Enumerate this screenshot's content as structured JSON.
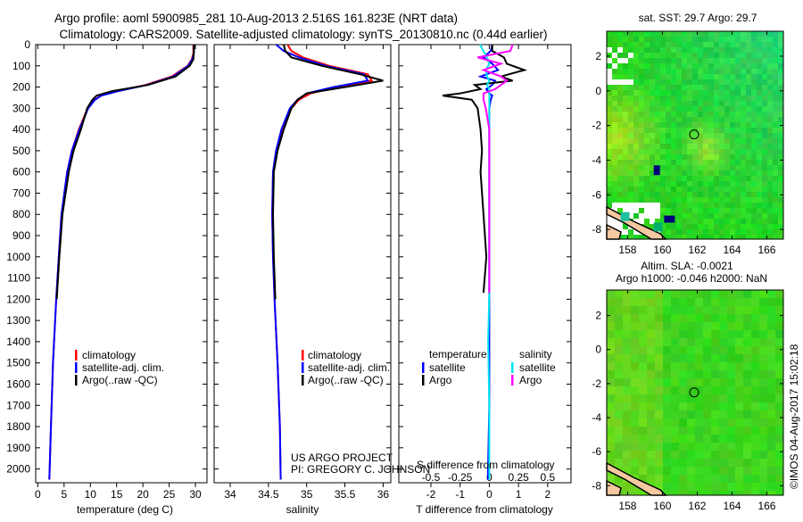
{
  "title_line1": "Argo profile: aoml 5900985_281 10-Aug-2013 2.516S 161.823E (NRT data)",
  "title_line2": "Climatology: CARS2009. Satellite-adjusted climatology: synTS_20130810.nc (0.44d earlier)",
  "credit": "©IMOS 04-Aug-2017 15:02:18",
  "project_line1": "US ARGO PROJECT",
  "project_line2": "PI: GREGORY C. JOHNSON",
  "colors": {
    "climatology": "#ff0000",
    "satellite": "#0000ff",
    "argo": "#000000",
    "sal_satellite": "#00e5ee",
    "sal_argo": "#ff00ff"
  },
  "chart_data": [
    {
      "type": "line",
      "id": "temperature",
      "xlabel": "temperature (deg C)",
      "ylabel": "depth",
      "xlim": [
        -0.4,
        32.2
      ],
      "ylim": [
        2050,
        0
      ],
      "xticks": [
        "0",
        "5",
        "10",
        "15",
        "20",
        "25",
        "30"
      ],
      "yticks": [
        "0",
        "100",
        "200",
        "300",
        "400",
        "500",
        "600",
        "700",
        "800",
        "900",
        "1000",
        "1100",
        "1200",
        "1300",
        "1400",
        "1500",
        "1600",
        "1700",
        "1800",
        "1900",
        "2000"
      ],
      "legend": [
        "climatology",
        "satellite-adj. clim.",
        "Argo(..raw -QC)"
      ],
      "depth": [
        0,
        40,
        70,
        100,
        150,
        190,
        220,
        240,
        260,
        300,
        400,
        500,
        600,
        800,
        1000,
        1200,
        1500,
        1800,
        2050
      ],
      "series": [
        {
          "name": "climatology",
          "values": [
            29.6,
            29.6,
            29.3,
            28.5,
            25.5,
            20.5,
            15,
            12,
            10.8,
            9.5,
            7.8,
            6.5,
            5.6,
            4.5,
            4.0,
            3.5,
            2.9,
            2.5,
            2.2
          ]
        },
        {
          "name": "satellite-adj. clim.",
          "values": [
            29.7,
            29.7,
            29.4,
            28.6,
            25.8,
            20.8,
            15.2,
            12.1,
            10.9,
            9.6,
            7.9,
            6.5,
            5.6,
            4.5,
            4.0,
            3.5,
            2.9,
            2.5,
            2.2
          ]
        },
        {
          "name": "Argo(..raw -QC)",
          "values": [
            29.7,
            29.7,
            29.6,
            28.9,
            26.2,
            21,
            14,
            11.2,
            10.4,
            9.4,
            8.2,
            6.8,
            5.9,
            4.7,
            4.1,
            3.6,
            null,
            null,
            null
          ]
        }
      ]
    },
    {
      "type": "line",
      "id": "salinity",
      "xlabel": "salinity",
      "xlim": [
        33.79,
        36.1
      ],
      "ylim": [
        2050,
        0
      ],
      "xticks": [
        "34",
        "34.5",
        "35",
        "35.5",
        "36"
      ],
      "legend": [
        "climatology",
        "satellite-adj. clim.",
        "Argo(..raw -QC)"
      ],
      "depth": [
        0,
        30,
        60,
        100,
        140,
        170,
        200,
        230,
        260,
        300,
        400,
        500,
        600,
        800,
        1000,
        1200,
        1500,
        1800,
        2050
      ],
      "series": [
        {
          "name": "climatology",
          "values": [
            34.75,
            34.8,
            34.95,
            35.3,
            35.8,
            35.85,
            35.4,
            35.05,
            34.9,
            34.8,
            34.68,
            34.6,
            34.56,
            34.55,
            34.56,
            34.58,
            34.62,
            34.65,
            34.66
          ]
        },
        {
          "name": "satellite-adj. clim.",
          "values": [
            34.6,
            34.7,
            34.9,
            35.25,
            35.75,
            35.8,
            35.35,
            35.0,
            34.88,
            34.78,
            34.67,
            34.6,
            34.56,
            34.55,
            34.56,
            34.58,
            34.62,
            34.65,
            34.66
          ]
        },
        {
          "name": "Argo(..raw -QC)",
          "values": [
            34.7,
            34.72,
            34.8,
            35.2,
            35.7,
            36.0,
            35.5,
            35.0,
            34.88,
            34.8,
            34.7,
            34.62,
            34.57,
            34.56,
            34.57,
            34.59,
            null,
            null,
            null
          ]
        }
      ]
    },
    {
      "type": "line",
      "id": "difference",
      "xlabel": "T difference from climatology",
      "xlabel2": "S difference from climatology",
      "xlim": [
        -3.1,
        2.8
      ],
      "ylim": [
        2050,
        0
      ],
      "xticks": [
        "-2",
        "-1",
        "0",
        "1",
        "2"
      ],
      "xticks2": [
        "-0.5",
        "-0.25",
        "0",
        "0.25",
        "0.5"
      ],
      "legend_temp_title": "temperature",
      "legend_sal_title": "salinity",
      "legend": [
        "satellite",
        "Argo",
        "satellite",
        "Argo"
      ],
      "depth": [
        0,
        30,
        60,
        90,
        120,
        150,
        170,
        190,
        210,
        230,
        240,
        260,
        300,
        400,
        500,
        600,
        800,
        1000,
        1170,
        1400,
        1700,
        2050
      ],
      "series": [
        {
          "name": "T satellite",
          "values": [
            0.1,
            0.05,
            -0.2,
            0.1,
            0.3,
            -0.3,
            0.2,
            0.1,
            -0.1,
            0.0,
            0.1,
            0.05,
            0.0,
            0.0,
            0.0,
            0.0,
            0.0,
            0.0,
            0.0,
            0.0,
            0.0,
            -0.05
          ]
        },
        {
          "name": "T Argo",
          "values": [
            0.1,
            0.1,
            0.5,
            0.6,
            1.2,
            0.4,
            0.8,
            -0.5,
            -0.3,
            -1.0,
            -1.6,
            -0.6,
            -0.4,
            -0.3,
            -0.25,
            -0.3,
            -0.2,
            -0.1,
            -0.2,
            null,
            null,
            null
          ]
        },
        {
          "name": "S satellite",
          "values": [
            -0.08,
            -0.05,
            -0.02,
            0.0,
            -0.03,
            -0.02,
            0.0,
            -0.02,
            0.0,
            0.0,
            0.0,
            0.0,
            0.0,
            0.0,
            0.0,
            0.0,
            0.0,
            0.0,
            0.0,
            -0.01,
            0.0,
            0.0
          ]
        },
        {
          "name": "S Argo",
          "values": [
            0.2,
            0.18,
            -0.1,
            0.1,
            -0.05,
            0.1,
            0.15,
            0.1,
            0.05,
            -0.05,
            -0.05,
            -0.05,
            -0.03,
            0.0,
            0.0,
            0.0,
            0.0,
            0.0,
            0.0,
            null,
            null,
            null
          ]
        }
      ]
    },
    {
      "type": "heatmap",
      "id": "sst-map",
      "title": "sat. SST: 29.7 Argo: 29.7",
      "xlim": [
        156.8,
        166.95
      ],
      "ylim": [
        -8.56,
        3.44
      ],
      "xticks": [
        "158",
        "160",
        "162",
        "164",
        "166"
      ],
      "yticks": [
        "2",
        "0",
        "-2",
        "-4",
        "-6",
        "-8"
      ],
      "marker": {
        "lon": 161.823,
        "lat": -2.516
      }
    },
    {
      "type": "heatmap",
      "id": "sla-map",
      "title": "Altim. SLA: -0.0021",
      "subtitle": "Argo h1000: -0.046 h2000: NaN",
      "xlim": [
        156.8,
        166.95
      ],
      "ylim": [
        -8.56,
        3.5
      ],
      "xticks": [
        "158",
        "160",
        "162",
        "164",
        "166"
      ],
      "yticks": [
        "2",
        "0",
        "-2",
        "-4",
        "-6",
        "-8"
      ],
      "marker": {
        "lon": 161.823,
        "lat": -2.516
      }
    }
  ]
}
